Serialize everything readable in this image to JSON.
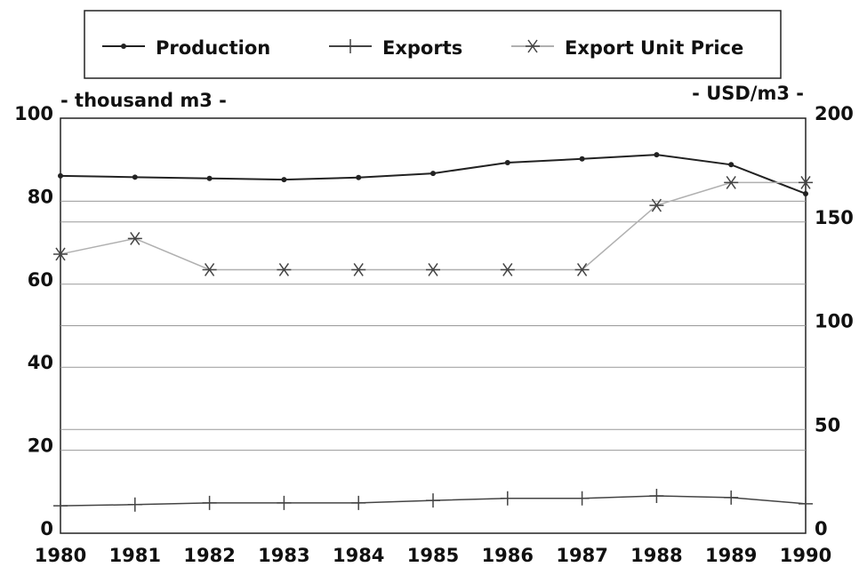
{
  "chart_data": {
    "type": "line",
    "y_label": "- thousand m3 -",
    "y2_label": "- USD/m3 -",
    "categories": [
      "1980",
      "1981",
      "1982",
      "1983",
      "1984",
      "1985",
      "1986",
      "1987",
      "1988",
      "1989",
      "1990"
    ],
    "series": [
      {
        "name": "Production",
        "color": "#222222",
        "marker": "dot",
        "values": [
          86.1,
          85.8,
          85.5,
          85.2,
          85.7,
          86.7,
          89.3,
          90.2,
          91.2,
          88.8,
          81.8
        ]
      },
      {
        "name": "Exports",
        "color": "#444444",
        "marker": "plus",
        "values": [
          6.6,
          6.9,
          7.3,
          7.3,
          7.3,
          7.9,
          8.4,
          8.4,
          9.0,
          8.6,
          7.1
        ]
      },
      {
        "name": "Export Unit Price",
        "color": "#b0b0b0",
        "marker": "asterisk",
        "axis": "y2",
        "values": [
          134.5,
          142,
          127,
          127,
          127,
          127,
          127,
          127,
          158,
          169,
          169
        ]
      }
    ],
    "ylim": [
      0,
      100
    ],
    "yticks": [
      0,
      20,
      40,
      60,
      80,
      100
    ],
    "y2lim": [
      0,
      200
    ],
    "y2ticks": [
      0,
      50,
      100,
      150,
      200
    ],
    "grid": true
  }
}
